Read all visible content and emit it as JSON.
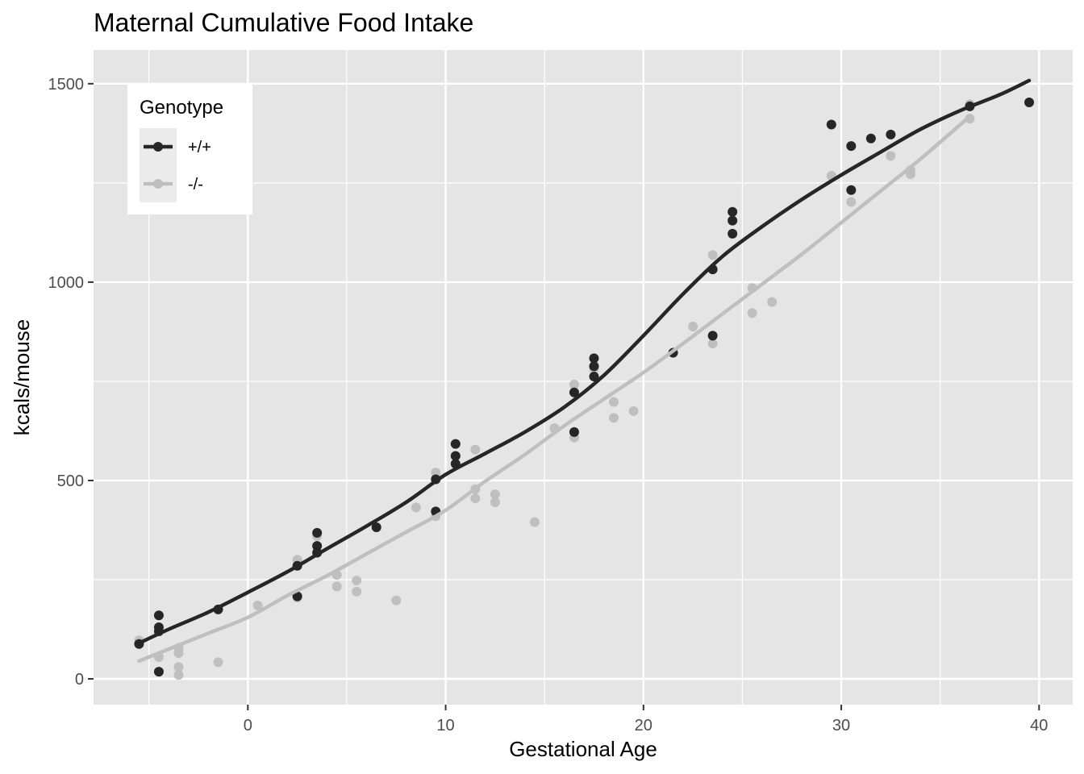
{
  "chart_data": {
    "type": "scatter",
    "title": "Maternal Cumulative Food Intake",
    "xlabel": "Gestational Age",
    "ylabel": "kcals/mouse",
    "xlim": [
      -7.8,
      41.7
    ],
    "ylim": [
      -65,
      1585
    ],
    "x_ticks": [
      0,
      10,
      20,
      30,
      40
    ],
    "y_ticks": [
      0,
      500,
      1000,
      1500
    ],
    "grid": true,
    "legend": {
      "title": "Genotype",
      "position": "top-left"
    },
    "series": [
      {
        "name": "+/+",
        "color": "#262626",
        "points": [
          [
            -5.5,
            88
          ],
          [
            -4.5,
            160
          ],
          [
            -4.5,
            130
          ],
          [
            -4.5,
            120
          ],
          [
            -4.5,
            18
          ],
          [
            -1.5,
            175
          ],
          [
            2.5,
            285
          ],
          [
            2.5,
            208
          ],
          [
            3.5,
            368
          ],
          [
            3.5,
            335
          ],
          [
            3.5,
            318
          ],
          [
            6.5,
            382
          ],
          [
            9.5,
            503
          ],
          [
            9.5,
            422
          ],
          [
            10.5,
            592
          ],
          [
            10.5,
            562
          ],
          [
            10.5,
            542
          ],
          [
            16.5,
            722
          ],
          [
            16.5,
            622
          ],
          [
            17.5,
            808
          ],
          [
            17.5,
            788
          ],
          [
            17.5,
            762
          ],
          [
            21.5,
            822
          ],
          [
            23.5,
            1032
          ],
          [
            23.5,
            865
          ],
          [
            24.5,
            1177
          ],
          [
            24.5,
            1155
          ],
          [
            24.5,
            1122
          ],
          [
            29.5,
            1397
          ],
          [
            30.5,
            1343
          ],
          [
            30.5,
            1232
          ],
          [
            31.5,
            1362
          ],
          [
            32.5,
            1372
          ],
          [
            36.5,
            1443
          ],
          [
            39.5,
            1453
          ]
        ],
        "smooth": [
          [
            -5.5,
            90
          ],
          [
            -4,
            125
          ],
          [
            -2,
            168
          ],
          [
            0,
            218
          ],
          [
            2,
            270
          ],
          [
            4,
            328
          ],
          [
            6,
            385
          ],
          [
            8,
            445
          ],
          [
            10,
            515
          ],
          [
            12,
            568
          ],
          [
            14,
            622
          ],
          [
            16,
            685
          ],
          [
            18,
            765
          ],
          [
            20,
            865
          ],
          [
            22,
            970
          ],
          [
            24,
            1065
          ],
          [
            26,
            1140
          ],
          [
            28,
            1208
          ],
          [
            30,
            1270
          ],
          [
            32,
            1328
          ],
          [
            34,
            1385
          ],
          [
            36,
            1432
          ],
          [
            38,
            1472
          ],
          [
            39.5,
            1508
          ]
        ]
      },
      {
        "name": "-/-",
        "color": "#bfbfbf",
        "points": [
          [
            -5.5,
            97
          ],
          [
            -4.5,
            55
          ],
          [
            -3.5,
            78
          ],
          [
            -3.5,
            65
          ],
          [
            -3.5,
            30
          ],
          [
            -3.5,
            10
          ],
          [
            -1.5,
            42
          ],
          [
            0.5,
            185
          ],
          [
            2.5,
            300
          ],
          [
            2.5,
            205
          ],
          [
            3.5,
            360
          ],
          [
            4.5,
            262
          ],
          [
            4.5,
            233
          ],
          [
            5.5,
            248
          ],
          [
            5.5,
            220
          ],
          [
            7.5,
            198
          ],
          [
            8.5,
            432
          ],
          [
            9.5,
            520
          ],
          [
            9.5,
            410
          ],
          [
            11.5,
            578
          ],
          [
            11.5,
            478
          ],
          [
            11.5,
            455
          ],
          [
            12.5,
            465
          ],
          [
            12.5,
            445
          ],
          [
            14.5,
            395
          ],
          [
            15.5,
            632
          ],
          [
            16.5,
            742
          ],
          [
            16.5,
            608
          ],
          [
            17.5,
            782
          ],
          [
            18.5,
            698
          ],
          [
            18.5,
            658
          ],
          [
            19.5,
            675
          ],
          [
            22.5,
            888
          ],
          [
            23.5,
            1068
          ],
          [
            23.5,
            845
          ],
          [
            25.5,
            985
          ],
          [
            25.5,
            922
          ],
          [
            26.5,
            950
          ],
          [
            29.5,
            1268
          ],
          [
            30.5,
            1202
          ],
          [
            32.5,
            1318
          ],
          [
            33.5,
            1282
          ],
          [
            33.5,
            1272
          ],
          [
            36.5,
            1448
          ],
          [
            36.5,
            1412
          ]
        ],
        "smooth": [
          [
            -5.5,
            45
          ],
          [
            -4,
            75
          ],
          [
            -2,
            115
          ],
          [
            0,
            155
          ],
          [
            2,
            210
          ],
          [
            4,
            260
          ],
          [
            6,
            315
          ],
          [
            8,
            370
          ],
          [
            10,
            425
          ],
          [
            12,
            498
          ],
          [
            14,
            565
          ],
          [
            16,
            638
          ],
          [
            18,
            705
          ],
          [
            20,
            772
          ],
          [
            22,
            845
          ],
          [
            24,
            920
          ],
          [
            26,
            995
          ],
          [
            28,
            1070
          ],
          [
            30,
            1150
          ],
          [
            32,
            1230
          ],
          [
            34,
            1310
          ],
          [
            36.5,
            1418
          ]
        ]
      }
    ]
  }
}
